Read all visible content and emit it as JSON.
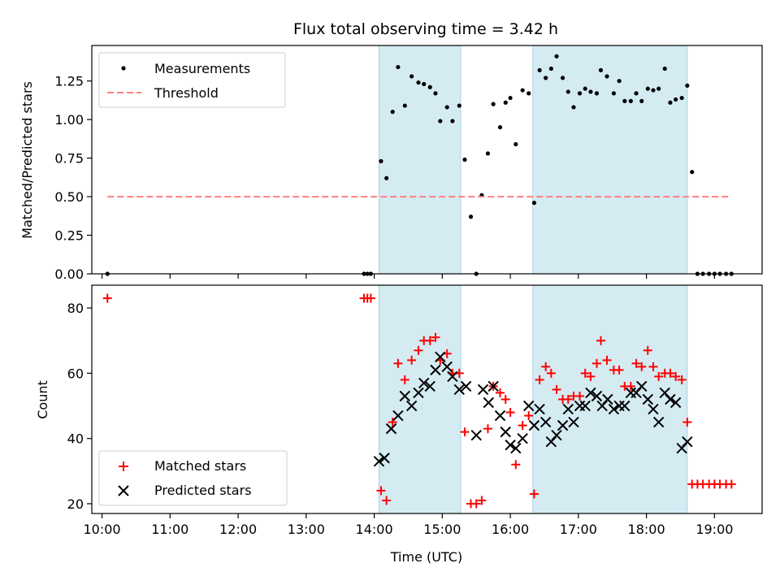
{
  "chart_data": [
    {
      "type": "scatter",
      "title": "Flux total observing time = 3.42 h",
      "xlabel": "",
      "ylabel": "Matched/Predicted stars",
      "xlim": [
        9.85,
        19.7
      ],
      "ylim": [
        0,
        1.48
      ],
      "yticks": [
        0.0,
        0.25,
        0.5,
        0.75,
        1.0,
        1.25
      ],
      "ytick_labels": [
        "0.00",
        "0.25",
        "0.50",
        "0.75",
        "1.00",
        "1.25"
      ],
      "xticks": [
        10,
        11,
        12,
        13,
        14,
        15,
        16,
        17,
        18,
        19
      ],
      "xtick_labels": [
        "10:00",
        "11:00",
        "12:00",
        "13:00",
        "14:00",
        "15:00",
        "16:00",
        "17:00",
        "18:00",
        "19:00"
      ],
      "shaded_intervals": [
        [
          14.07,
          15.27
        ],
        [
          16.33,
          18.6
        ]
      ],
      "shade_color": "#add8e6",
      "legend": {
        "entries": [
          "Measurements",
          "Threshold"
        ],
        "position": "upper left"
      },
      "series": [
        {
          "name": "Measurements",
          "marker": "dot",
          "color": "#000000",
          "x": [
            10.08,
            13.85,
            13.9,
            13.95,
            14.1,
            14.18,
            14.27,
            14.35,
            14.45,
            14.55,
            14.65,
            14.73,
            14.82,
            14.9,
            14.97,
            15.07,
            15.15,
            15.25,
            15.33,
            15.42,
            15.5,
            15.58,
            15.67,
            15.75,
            15.85,
            15.93,
            16.0,
            16.08,
            16.18,
            16.27,
            16.35,
            16.43,
            16.52,
            16.6,
            16.68,
            16.77,
            16.85,
            16.93,
            17.02,
            17.1,
            17.18,
            17.27,
            17.33,
            17.42,
            17.52,
            17.6,
            17.68,
            17.77,
            17.85,
            17.93,
            18.02,
            18.1,
            18.18,
            18.27,
            18.35,
            18.43,
            18.52,
            18.6,
            18.67,
            18.75,
            18.83,
            18.92,
            19.0,
            19.08,
            19.17,
            19.25
          ],
          "y": [
            0.0,
            0.0,
            0.0,
            0.0,
            0.73,
            0.62,
            1.05,
            1.34,
            1.09,
            1.28,
            1.24,
            1.23,
            1.21,
            1.17,
            0.99,
            1.08,
            0.99,
            1.09,
            0.74,
            0.37,
            0.0,
            0.51,
            0.78,
            1.1,
            0.95,
            1.11,
            1.14,
            0.84,
            1.19,
            1.17,
            0.46,
            1.32,
            1.27,
            1.33,
            1.41,
            1.27,
            1.18,
            1.08,
            1.17,
            1.2,
            1.18,
            1.17,
            1.32,
            1.28,
            1.17,
            1.25,
            1.12,
            1.12,
            1.17,
            1.12,
            1.2,
            1.19,
            1.2,
            1.33,
            1.11,
            1.13,
            1.14,
            1.22,
            0.66,
            0.0,
            0.0,
            0.0,
            0.0,
            0.0,
            0.0,
            0.0
          ]
        },
        {
          "name": "Threshold",
          "style": "dashed",
          "color": "#ff7f7f",
          "x": [
            10.08,
            19.25
          ],
          "y": [
            0.5,
            0.5
          ]
        }
      ]
    },
    {
      "type": "scatter",
      "title": "",
      "xlabel": "Time (UTC)",
      "ylabel": "Count",
      "xlim": [
        9.85,
        19.7
      ],
      "ylim": [
        17,
        87
      ],
      "yticks": [
        20,
        40,
        60,
        80
      ],
      "ytick_labels": [
        "20",
        "40",
        "60",
        "80"
      ],
      "xticks": [
        10,
        11,
        12,
        13,
        14,
        15,
        16,
        17,
        18,
        19
      ],
      "xtick_labels": [
        "10:00",
        "11:00",
        "12:00",
        "13:00",
        "14:00",
        "15:00",
        "16:00",
        "17:00",
        "18:00",
        "19:00"
      ],
      "shaded_intervals": [
        [
          14.07,
          15.27
        ],
        [
          16.33,
          18.6
        ]
      ],
      "shade_color": "#add8e6",
      "legend": {
        "entries": [
          "Matched stars",
          "Predicted stars"
        ],
        "position": "lower left"
      },
      "series": [
        {
          "name": "Matched stars",
          "marker": "plus",
          "color": "#ff0000",
          "x": [
            10.08,
            13.85,
            13.9,
            13.95,
            14.1,
            14.18,
            14.27,
            14.35,
            14.45,
            14.55,
            14.65,
            14.73,
            14.82,
            14.9,
            14.97,
            15.07,
            15.15,
            15.25,
            15.33,
            15.42,
            15.5,
            15.58,
            15.67,
            15.75,
            15.85,
            15.93,
            16.0,
            16.08,
            16.18,
            16.27,
            16.35,
            16.43,
            16.52,
            16.6,
            16.68,
            16.77,
            16.85,
            16.93,
            17.02,
            17.1,
            17.18,
            17.27,
            17.33,
            17.42,
            17.52,
            17.6,
            17.68,
            17.77,
            17.85,
            17.93,
            18.02,
            18.1,
            18.18,
            18.27,
            18.35,
            18.43,
            18.52,
            18.6,
            18.67,
            18.75,
            18.83,
            18.92,
            19.0,
            19.08,
            19.17,
            19.25
          ],
          "y": [
            83,
            83,
            83,
            83,
            24,
            21,
            45,
            63,
            58,
            64,
            67,
            70,
            70,
            71,
            64,
            66,
            60,
            60,
            42,
            20,
            20,
            21,
            43,
            56,
            54,
            52,
            48,
            32,
            44,
            47,
            23,
            58,
            62,
            60,
            55,
            52,
            52,
            53,
            53,
            60,
            59,
            63,
            70,
            64,
            61,
            61,
            56,
            56,
            63,
            62,
            67,
            62,
            59,
            60,
            60,
            59,
            58,
            45,
            26,
            26,
            26,
            26,
            26,
            26,
            26,
            26
          ]
        },
        {
          "name": "Predicted stars",
          "marker": "x",
          "color": "#000000",
          "x": [
            14.07,
            14.15,
            14.25,
            14.35,
            14.45,
            14.55,
            14.65,
            14.73,
            14.82,
            14.9,
            14.97,
            15.07,
            15.15,
            15.25,
            15.35,
            15.5,
            15.6,
            15.68,
            15.75,
            15.85,
            15.93,
            16.0,
            16.08,
            16.18,
            16.27,
            16.35,
            16.43,
            16.52,
            16.6,
            16.68,
            16.77,
            16.85,
            16.93,
            17.02,
            17.1,
            17.18,
            17.27,
            17.35,
            17.43,
            17.52,
            17.6,
            17.68,
            17.77,
            17.85,
            17.93,
            18.02,
            18.1,
            18.18,
            18.27,
            18.35,
            18.43,
            18.52,
            18.6
          ],
          "y": [
            33,
            34,
            43,
            47,
            53,
            50,
            54,
            57,
            56,
            61,
            65,
            62,
            59,
            55,
            56,
            41,
            55,
            51,
            56,
            47,
            42,
            38,
            37,
            40,
            50,
            44,
            49,
            45,
            39,
            41,
            44,
            49,
            45,
            50,
            50,
            54,
            53,
            50,
            52,
            49,
            50,
            50,
            54,
            54,
            56,
            52,
            49,
            45,
            54,
            52,
            51,
            37,
            39
          ]
        }
      ]
    }
  ]
}
